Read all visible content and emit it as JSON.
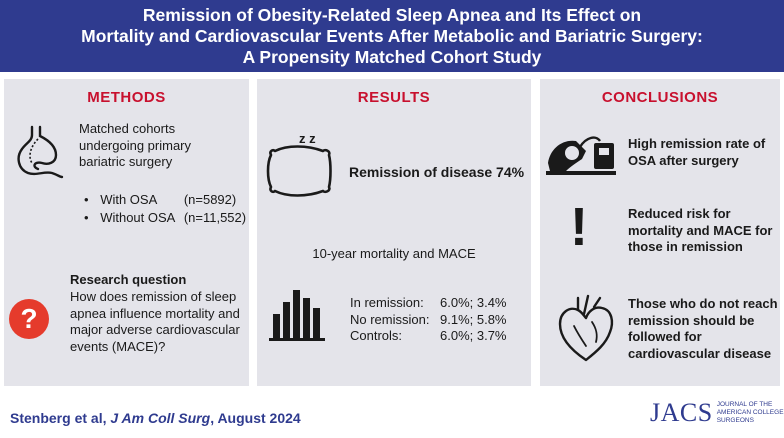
{
  "header": {
    "line1": "Remission of Obesity-Related Sleep Apnea and Its Effect on",
    "line2": "Mortality and Cardiovascular Events After Metabolic and Bariatric Surgery:",
    "line3": "A Propensity Matched Cohort Study"
  },
  "methods": {
    "title": "METHODS",
    "cohort_text": "Matched cohorts undergoing primary bariatric surgery",
    "groups": [
      {
        "label": "With OSA",
        "n": "(n=5892)"
      },
      {
        "label": "Without OSA",
        "n": "(n=11,552)"
      }
    ],
    "rq_title": "Research question",
    "rq_text": "How does remission of sleep apnea influence mortality and major adverse cardiovascular events (MACE)?",
    "rq_icon_symbol": "?"
  },
  "results": {
    "title": "RESULTS",
    "remission_label": "Remission of disease 74%",
    "sleep_symbol": "z z",
    "mortality_label": "10-year mortality and MACE",
    "rows": [
      {
        "label": "In remission:",
        "value": "6.0%; 3.4%"
      },
      {
        "label": "No remission:",
        "value": "9.1%; 5.8%"
      },
      {
        "label": "Controls:",
        "value": "6.0%; 3.7%"
      }
    ]
  },
  "conclusions": {
    "title": "CONCLUSIONS",
    "items": [
      "High remission rate of OSA after surgery",
      "Reduced risk for mortality and MACE for those in remission",
      "Those who do not reach remission should be followed for cardiovascular disease"
    ],
    "exclaim_symbol": "!"
  },
  "footer": {
    "authors": "Stenberg et al,",
    "journal": "J Am Coll Surg",
    "date": ", August 2024",
    "logo_word": "JACS",
    "logo_sub": "JOURNAL OF THE AMERICAN COLLEGE OF SURGEONS"
  },
  "colors": {
    "header_bg": "#2f3b8f",
    "section_title": "#c8102e",
    "panel_bg": "#e4e4ea",
    "question_icon": "#e53b2c"
  }
}
